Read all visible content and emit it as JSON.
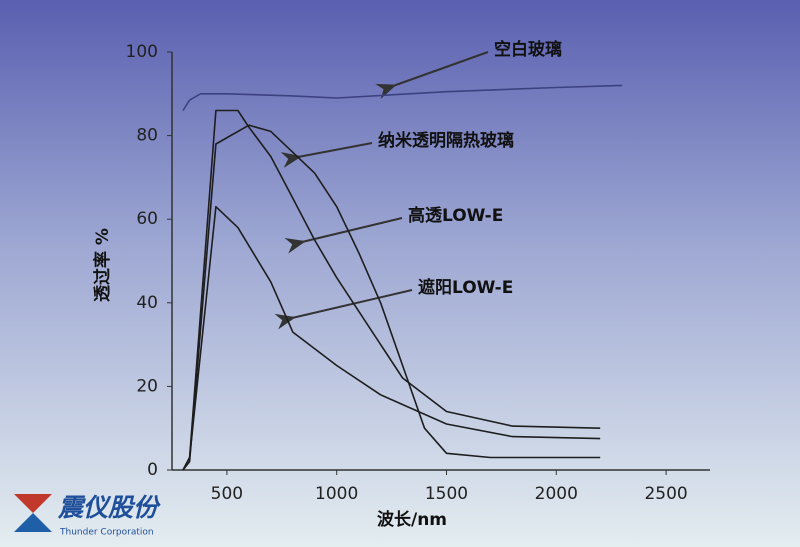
{
  "chart_data": {
    "type": "line",
    "x_label": "波长/nm",
    "y_label": "透过率 %",
    "xlim": [
      250,
      2700
    ],
    "ylim": [
      0,
      100
    ],
    "xticks": [
      500,
      1000,
      1500,
      2000,
      2500
    ],
    "yticks": [
      0,
      20,
      40,
      60,
      80,
      100
    ],
    "series": [
      {
        "name": "空白玻璃",
        "color": "#3c4180",
        "x": [
          300,
          330,
          380,
          500,
          800,
          1000,
          1500,
          2000,
          2300
        ],
        "values": [
          86,
          88.5,
          90,
          90,
          89.5,
          89,
          90.5,
          91.5,
          92
        ]
      },
      {
        "name": "纳米透明隔热玻璃",
        "color": "#1e1e1e",
        "x": [
          300,
          330,
          450,
          600,
          700,
          800,
          900,
          1000,
          1100,
          1200,
          1300,
          1400,
          1500,
          1700,
          2000,
          2200
        ],
        "values": [
          0,
          2,
          78,
          82.5,
          81,
          76,
          71,
          63,
          52,
          40,
          25,
          10,
          4,
          3,
          3,
          3
        ]
      },
      {
        "name": "高透LOW-E",
        "color": "#1e1e1e",
        "x": [
          300,
          330,
          450,
          550,
          600,
          700,
          800,
          900,
          1000,
          1100,
          1300,
          1500,
          1800,
          2200
        ],
        "values": [
          0,
          3,
          86,
          86,
          82,
          75,
          65,
          55,
          46,
          38,
          22,
          14,
          10.5,
          10
        ]
      },
      {
        "name": "遮阳LOW-E",
        "color": "#1e1e1e",
        "x": [
          300,
          330,
          450,
          550,
          700,
          800,
          900,
          1000,
          1200,
          1500,
          1800,
          2200
        ],
        "values": [
          0,
          3,
          63,
          58,
          45,
          33,
          29,
          25,
          18,
          11,
          8,
          7.5
        ]
      }
    ],
    "logo": {
      "name": "震仪股份",
      "subtitle": "Thunder Corporation"
    }
  }
}
